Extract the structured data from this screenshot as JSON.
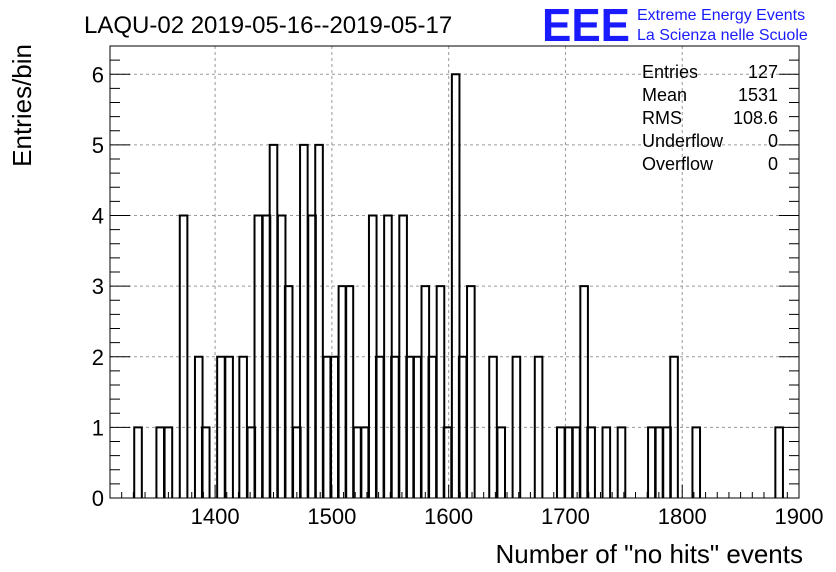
{
  "title": "LAQU-02 2019-05-16--2019-05-17",
  "logo": {
    "mark": "EEE",
    "line1": "Extreme Energy Events",
    "line2": "La Scienza nelle Scuole",
    "color": "#1a1aff"
  },
  "stats": [
    {
      "label": "Entries",
      "value": "127"
    },
    {
      "label": "Mean",
      "value": "1531"
    },
    {
      "label": "RMS",
      "value": "108.6"
    },
    {
      "label": "Underflow",
      "value": "0"
    },
    {
      "label": "Overflow",
      "value": "0"
    }
  ],
  "chart_data": {
    "type": "histogram",
    "xlabel": "Number of \"no hits\" events",
    "ylabel": "Entries/bin",
    "xlim": [
      1310,
      1900
    ],
    "ylim": [
      0,
      6.4
    ],
    "bin_width": 6.5,
    "x_ticks": [
      "1400",
      "1500",
      "1600",
      "1700",
      "1800",
      "1900"
    ],
    "y_ticks": [
      "0",
      "1",
      "2",
      "3",
      "4",
      "5",
      "6"
    ],
    "grid": true,
    "bins": [
      {
        "x": 1334,
        "y": 1
      },
      {
        "x": 1353,
        "y": 1
      },
      {
        "x": 1360,
        "y": 1
      },
      {
        "x": 1373,
        "y": 4
      },
      {
        "x": 1386,
        "y": 2
      },
      {
        "x": 1392,
        "y": 1
      },
      {
        "x": 1405,
        "y": 2
      },
      {
        "x": 1412,
        "y": 2
      },
      {
        "x": 1424,
        "y": 2
      },
      {
        "x": 1431,
        "y": 1
      },
      {
        "x": 1437,
        "y": 4
      },
      {
        "x": 1444,
        "y": 4
      },
      {
        "x": 1450,
        "y": 5
      },
      {
        "x": 1457,
        "y": 4
      },
      {
        "x": 1463,
        "y": 3
      },
      {
        "x": 1470,
        "y": 1
      },
      {
        "x": 1476,
        "y": 5
      },
      {
        "x": 1483,
        "y": 4
      },
      {
        "x": 1489,
        "y": 5
      },
      {
        "x": 1496,
        "y": 2
      },
      {
        "x": 1502,
        "y": 2
      },
      {
        "x": 1509,
        "y": 3
      },
      {
        "x": 1515,
        "y": 3
      },
      {
        "x": 1522,
        "y": 1
      },
      {
        "x": 1528,
        "y": 1
      },
      {
        "x": 1535,
        "y": 4
      },
      {
        "x": 1541,
        "y": 2
      },
      {
        "x": 1548,
        "y": 4
      },
      {
        "x": 1554,
        "y": 2
      },
      {
        "x": 1561,
        "y": 4
      },
      {
        "x": 1567,
        "y": 2
      },
      {
        "x": 1573,
        "y": 2
      },
      {
        "x": 1580,
        "y": 3
      },
      {
        "x": 1586,
        "y": 2
      },
      {
        "x": 1593,
        "y": 3
      },
      {
        "x": 1599,
        "y": 1
      },
      {
        "x": 1606,
        "y": 6
      },
      {
        "x": 1612,
        "y": 2
      },
      {
        "x": 1619,
        "y": 3
      },
      {
        "x": 1638,
        "y": 2
      },
      {
        "x": 1645,
        "y": 1
      },
      {
        "x": 1658,
        "y": 2
      },
      {
        "x": 1677,
        "y": 2
      },
      {
        "x": 1696,
        "y": 1
      },
      {
        "x": 1703,
        "y": 1
      },
      {
        "x": 1709,
        "y": 1
      },
      {
        "x": 1716,
        "y": 3
      },
      {
        "x": 1722,
        "y": 1
      },
      {
        "x": 1735,
        "y": 1
      },
      {
        "x": 1748,
        "y": 1
      },
      {
        "x": 1774,
        "y": 1
      },
      {
        "x": 1780,
        "y": 1
      },
      {
        "x": 1787,
        "y": 1
      },
      {
        "x": 1793,
        "y": 2
      },
      {
        "x": 1812,
        "y": 1
      },
      {
        "x": 1883,
        "y": 1
      }
    ]
  }
}
